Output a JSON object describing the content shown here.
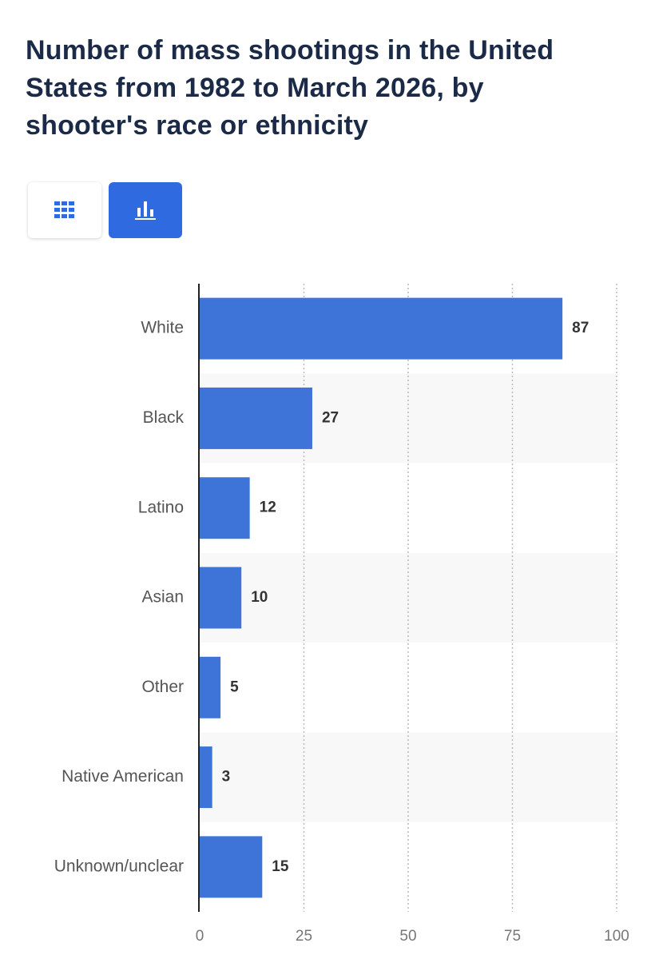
{
  "chart_data": {
    "type": "bar",
    "title": "Number of mass shootings in the United States from 1982 to March 2026, by shooter's race or ethnicity",
    "categories": [
      "White",
      "Black",
      "Latino",
      "Asian",
      "Other",
      "Native American",
      "Unknown/unclear"
    ],
    "values": [
      87,
      27,
      12,
      10,
      5,
      3,
      15
    ],
    "color": "#3e74d8",
    "xlim": [
      0,
      100
    ],
    "xticks": [
      0,
      25,
      50,
      75,
      100
    ],
    "grid": true
  }
}
